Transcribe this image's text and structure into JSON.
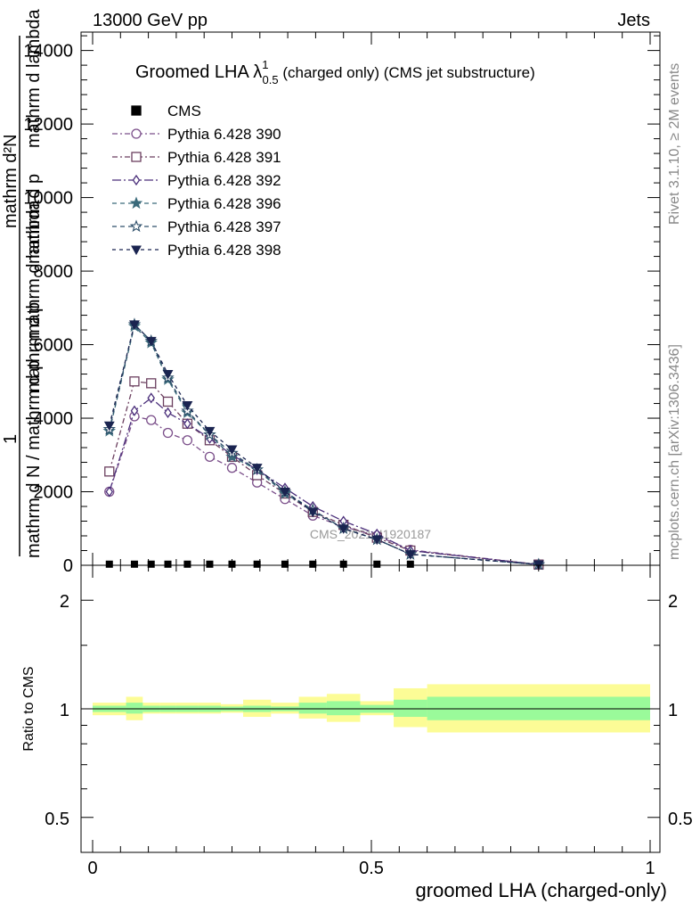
{
  "header": {
    "left": "13000 GeV pp",
    "right": "Jets"
  },
  "side_labels": {
    "rivet": "Rivet 3.1.10, ≥ 2M events",
    "mcplots": "mcplots.cern.ch [arXiv:1306.3436]"
  },
  "chart_data": [
    {
      "type": "line",
      "title_main": "Groomed LHA ",
      "title_lambda": "λ",
      "title_sup": "1",
      "title_sub": "0.5",
      "title_rest": " (charged only) (CMS jet substructure)",
      "ylabel_top": "mathrm d²N",
      "ylabel_top_denominator": "mathrm d p",
      "ylabel_mid_denominator": "mathrm d p",
      "ylabel_bottom_numerator": "1",
      "ylabel_bottom_denominator": "mathrm d N / mathrm d p",
      "ylabel_overlap": "mathrm d lambda",
      "ylabel_overlap2": "mathrm d lambda",
      "watermark": "CMS_2021_I1920187",
      "xlim": [
        0,
        1
      ],
      "ylim": [
        0,
        14500
      ],
      "yticks": [
        0,
        2000,
        4000,
        6000,
        8000,
        10000,
        12000,
        14000
      ],
      "ytick_labels": [
        "0",
        "2000",
        "4000",
        "6000",
        "8000",
        "10000",
        "12000",
        "14000"
      ],
      "legend_position": "top-left",
      "data": {
        "name": "CMS",
        "x": [
          0.03,
          0.075,
          0.105,
          0.135,
          0.17,
          0.21,
          0.25,
          0.295,
          0.345,
          0.395,
          0.45,
          0.51,
          0.57
        ],
        "y": [
          30,
          30,
          30,
          30,
          30,
          30,
          30,
          30,
          30,
          30,
          30,
          30,
          30
        ]
      },
      "series": [
        {
          "name": "Pythia 6.428 390",
          "color": "#7b4f8a",
          "marker": "circle-open",
          "dash": "6,3,2,3",
          "x": [
            0.03,
            0.075,
            0.105,
            0.135,
            0.17,
            0.21,
            0.25,
            0.295,
            0.345,
            0.395,
            0.45,
            0.51,
            0.57,
            0.8
          ],
          "y": [
            2000,
            4050,
            3950,
            3600,
            3400,
            2950,
            2650,
            2250,
            1800,
            1350,
            1050,
            800,
            420,
            20
          ]
        },
        {
          "name": "Pythia 6.428 391",
          "color": "#6b3f5f",
          "marker": "square-open",
          "dash": "6,3,2,3",
          "x": [
            0.03,
            0.075,
            0.105,
            0.135,
            0.17,
            0.21,
            0.25,
            0.295,
            0.345,
            0.395,
            0.45,
            0.51,
            0.57,
            0.8
          ],
          "y": [
            2550,
            5000,
            4950,
            4450,
            3850,
            3400,
            2950,
            2450,
            1950,
            1450,
            1100,
            750,
            400,
            20
          ]
        },
        {
          "name": "Pythia 6.428 392",
          "color": "#4a2e7a",
          "marker": "diamond-open",
          "dash": "10,3,2,3",
          "x": [
            0.03,
            0.075,
            0.105,
            0.135,
            0.17,
            0.21,
            0.25,
            0.295,
            0.345,
            0.395,
            0.45,
            0.51,
            0.57,
            0.8
          ],
          "y": [
            2000,
            4200,
            4550,
            4150,
            3850,
            3450,
            3000,
            2600,
            2100,
            1600,
            1200,
            850,
            400,
            20
          ]
        },
        {
          "name": "Pythia 6.428 396",
          "color": "#3a6a7a",
          "marker": "star-filled",
          "dash": "5,4",
          "x": [
            0.03,
            0.075,
            0.105,
            0.135,
            0.17,
            0.21,
            0.25,
            0.295,
            0.345,
            0.395,
            0.45,
            0.51,
            0.57,
            0.8
          ],
          "y": [
            3650,
            6500,
            6050,
            5050,
            4150,
            3550,
            2950,
            2600,
            1950,
            1500,
            1000,
            700,
            300,
            20
          ]
        },
        {
          "name": "Pythia 6.428 397",
          "color": "#2e4f6a",
          "marker": "star-open",
          "dash": "5,4",
          "x": [
            0.03,
            0.075,
            0.105,
            0.135,
            0.17,
            0.21,
            0.25,
            0.295,
            0.345,
            0.395,
            0.45,
            0.51,
            0.57,
            0.8
          ],
          "y": [
            3700,
            6550,
            6100,
            5100,
            4200,
            3550,
            3050,
            2600,
            2000,
            1500,
            1000,
            700,
            300,
            20
          ]
        },
        {
          "name": "Pythia 6.428 398",
          "color": "#1a2450",
          "marker": "triangle-down-filled",
          "dash": "4,4",
          "x": [
            0.03,
            0.075,
            0.105,
            0.135,
            0.17,
            0.21,
            0.25,
            0.295,
            0.345,
            0.395,
            0.45,
            0.51,
            0.57,
            0.8
          ],
          "y": [
            3800,
            6550,
            6100,
            5200,
            4350,
            3650,
            3150,
            2650,
            2000,
            1450,
            1000,
            700,
            300,
            20
          ]
        }
      ]
    },
    {
      "type": "area",
      "ylabel": "Ratio to CMS",
      "xlabel": "groomed LHA (charged-only)",
      "xlim": [
        0,
        1
      ],
      "ylim": [
        0.4,
        2.5
      ],
      "yscale": "log",
      "yticks": [
        0.5,
        1,
        2
      ],
      "ytick_labels": [
        "0.5",
        "1",
        "2"
      ],
      "xticks": [
        0,
        0.5,
        1
      ],
      "xtick_labels": [
        "0",
        "0.5",
        "1"
      ],
      "bins": [
        {
          "xlo": 0.0,
          "xhi": 0.06,
          "stat_lo": 0.98,
          "stat_hi": 1.02,
          "tot_lo": 0.96,
          "tot_hi": 1.04
        },
        {
          "xlo": 0.06,
          "xhi": 0.09,
          "stat_lo": 0.97,
          "stat_hi": 1.04,
          "tot_lo": 0.93,
          "tot_hi": 1.08
        },
        {
          "xlo": 0.09,
          "xhi": 0.12,
          "stat_lo": 0.98,
          "stat_hi": 1.02,
          "tot_lo": 0.97,
          "tot_hi": 1.04
        },
        {
          "xlo": 0.12,
          "xhi": 0.15,
          "stat_lo": 0.98,
          "stat_hi": 1.02,
          "tot_lo": 0.97,
          "tot_hi": 1.04
        },
        {
          "xlo": 0.15,
          "xhi": 0.19,
          "stat_lo": 0.98,
          "stat_hi": 1.02,
          "tot_lo": 0.97,
          "tot_hi": 1.04
        },
        {
          "xlo": 0.19,
          "xhi": 0.23,
          "stat_lo": 0.98,
          "stat_hi": 1.02,
          "tot_lo": 0.97,
          "tot_hi": 1.04
        },
        {
          "xlo": 0.23,
          "xhi": 0.27,
          "stat_lo": 0.985,
          "stat_hi": 1.015,
          "tot_lo": 0.975,
          "tot_hi": 1.03
        },
        {
          "xlo": 0.27,
          "xhi": 0.32,
          "stat_lo": 0.98,
          "stat_hi": 1.02,
          "tot_lo": 0.95,
          "tot_hi": 1.06
        },
        {
          "xlo": 0.32,
          "xhi": 0.37,
          "stat_lo": 0.985,
          "stat_hi": 1.015,
          "tot_lo": 0.97,
          "tot_hi": 1.04
        },
        {
          "xlo": 0.37,
          "xhi": 0.42,
          "stat_lo": 0.97,
          "stat_hi": 1.04,
          "tot_lo": 0.94,
          "tot_hi": 1.08
        },
        {
          "xlo": 0.42,
          "xhi": 0.48,
          "stat_lo": 0.96,
          "stat_hi": 1.05,
          "tot_lo": 0.92,
          "tot_hi": 1.1
        },
        {
          "xlo": 0.48,
          "xhi": 0.54,
          "stat_lo": 0.975,
          "stat_hi": 1.025,
          "tot_lo": 0.96,
          "tot_hi": 1.05
        },
        {
          "xlo": 0.54,
          "xhi": 0.6,
          "stat_lo": 0.95,
          "stat_hi": 1.06,
          "tot_lo": 0.89,
          "tot_hi": 1.14
        },
        {
          "xlo": 0.6,
          "xhi": 1.0,
          "stat_lo": 0.93,
          "stat_hi": 1.08,
          "tot_lo": 0.86,
          "tot_hi": 1.17
        }
      ]
    }
  ]
}
